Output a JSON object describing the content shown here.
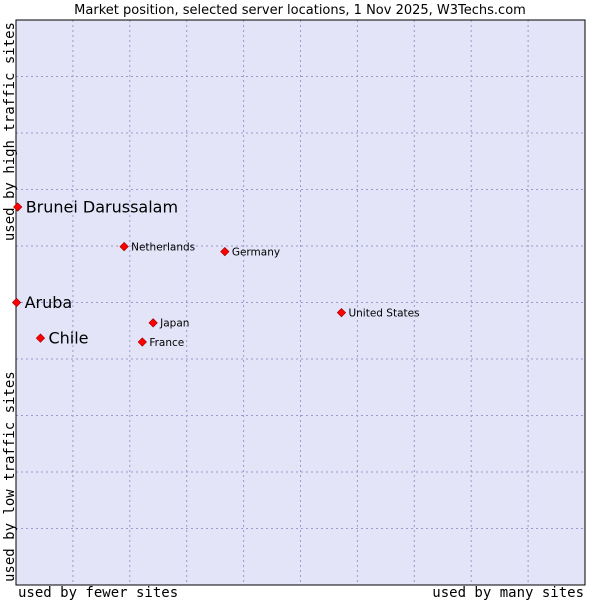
{
  "chart_data": {
    "type": "scatter",
    "title": "Market position, selected server locations, 1 Nov 2025, W3Techs.com",
    "xlabel_left": "used by fewer sites",
    "xlabel_right": "used by many sites",
    "ylabel_bottom": "used by low traffic sites",
    "ylabel_top": "used by high traffic sites",
    "xlim": [
      0,
      100
    ],
    "ylim": [
      0,
      100
    ],
    "grid": true,
    "colors": {
      "plot_bg": "#e4e4f8",
      "grid": "#9a9acc",
      "marker": "#ff0000",
      "marker_edge": "#990000"
    },
    "points": [
      {
        "name": "Brunei Darussalam",
        "x": 0.3,
        "y": 66.9,
        "highlight": true
      },
      {
        "name": "Aruba",
        "x": 0.1,
        "y": 50.0,
        "highlight": true
      },
      {
        "name": "Chile",
        "x": 4.3,
        "y": 43.7,
        "highlight": true
      },
      {
        "name": "Netherlands",
        "x": 19.0,
        "y": 59.9,
        "highlight": false
      },
      {
        "name": "Germany",
        "x": 36.7,
        "y": 59.0,
        "highlight": false
      },
      {
        "name": "United States",
        "x": 57.2,
        "y": 48.2,
        "highlight": false
      },
      {
        "name": "Japan",
        "x": 24.1,
        "y": 46.4,
        "highlight": false
      },
      {
        "name": "France",
        "x": 22.2,
        "y": 43.0,
        "highlight": false
      }
    ]
  }
}
